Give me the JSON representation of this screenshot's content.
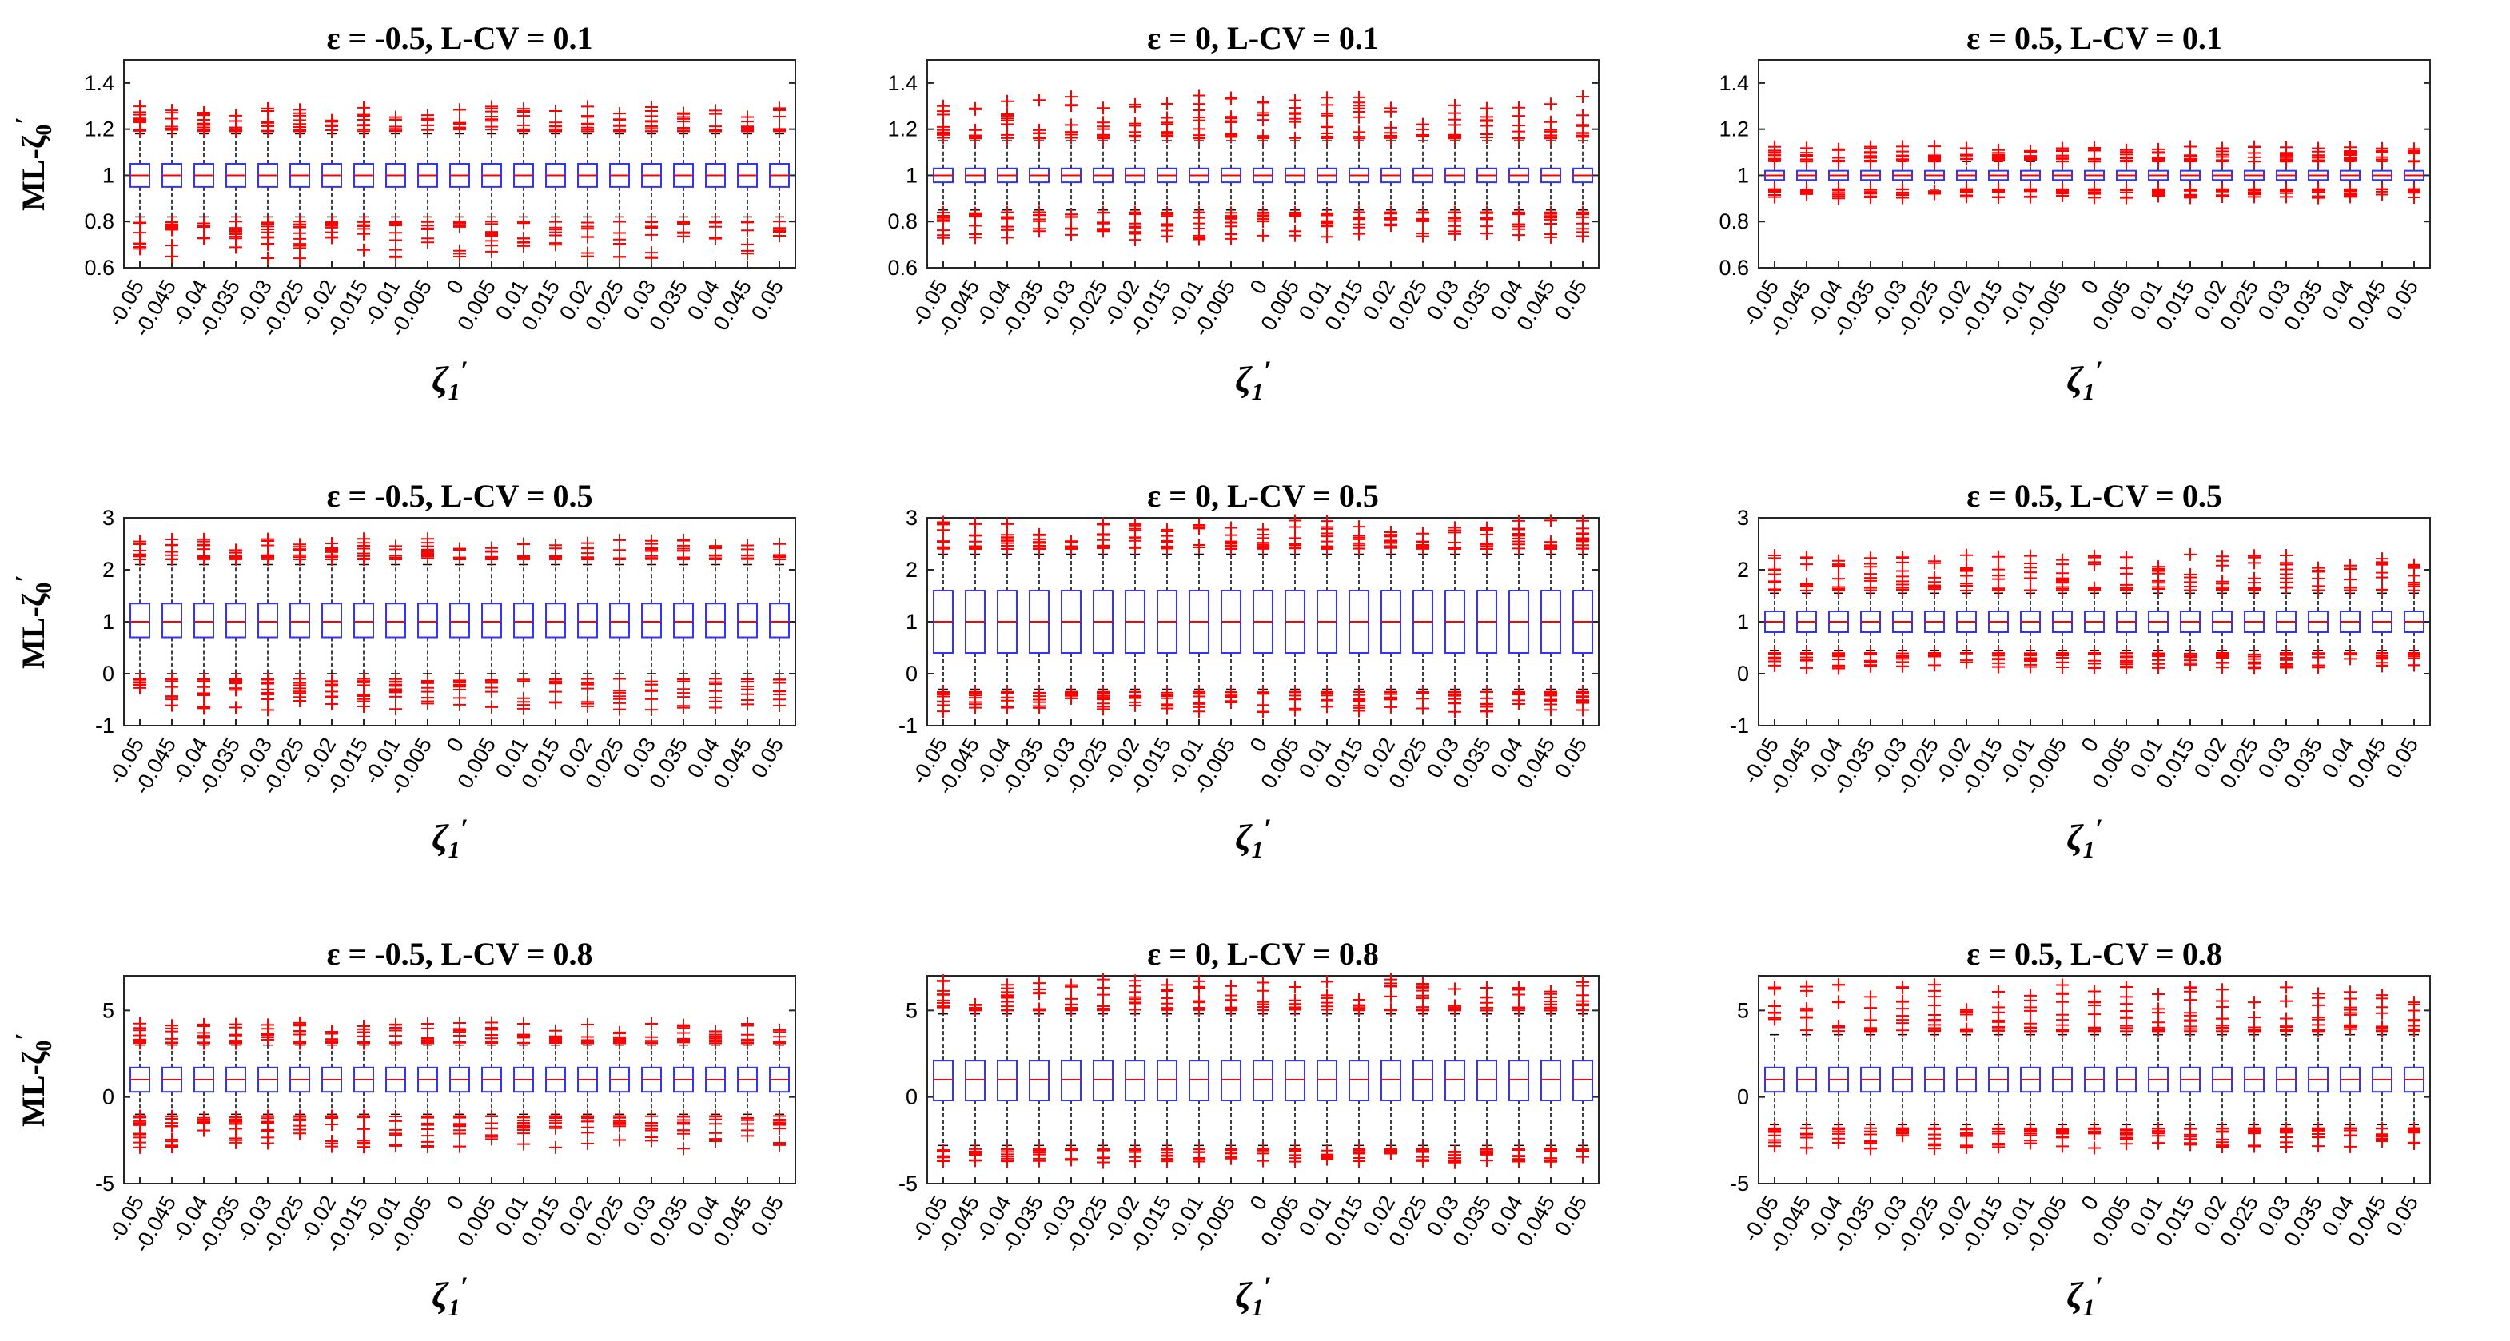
{
  "figure": {
    "xlabel_symbol": "ζ",
    "xlabel_sub": "1",
    "xlabel_prime": "′",
    "ylabel_prefix": "ML-ζ",
    "ylabel_sub": "0",
    "ylabel_prime": "′",
    "colors": {
      "box": "#3333ff",
      "median": "#ff0000",
      "outlier": "#ff0000",
      "whisker": "#000000",
      "axes": "#262626"
    }
  },
  "chart_data": [
    {
      "type": "box",
      "title": "ε = -0.5, L-CV = 0.1",
      "show_ylabel": true,
      "categories": [
        "-0.05",
        "-0.045",
        "-0.04",
        "-0.035",
        "-0.03",
        "-0.025",
        "-0.02",
        "-0.015",
        "-0.01",
        "-0.005",
        "0",
        "0.005",
        "0.01",
        "0.015",
        "0.02",
        "0.025",
        "0.03",
        "0.035",
        "0.04",
        "0.045",
        "0.05"
      ],
      "ylim": [
        0.6,
        1.5
      ],
      "yticks": [
        0.6,
        0.8,
        1,
        1.2,
        1.4
      ],
      "ytick_labels": [
        "0.6",
        "0.8",
        "1",
        "1.2",
        "1.4"
      ],
      "box": {
        "q1": 0.95,
        "median": 1.0,
        "q3": 1.05,
        "whisker_low": 0.82,
        "whisker_high": 1.18
      },
      "outliers_high": {
        "min": 1.19,
        "max": 1.3
      },
      "outliers_low": {
        "min": 0.64,
        "max": 0.8
      }
    },
    {
      "type": "box",
      "title": "ε = 0, L-CV = 0.1",
      "show_ylabel": false,
      "categories": [
        "-0.05",
        "-0.045",
        "-0.04",
        "-0.035",
        "-0.03",
        "-0.025",
        "-0.02",
        "-0.015",
        "-0.01",
        "-0.005",
        "0",
        "0.005",
        "0.01",
        "0.015",
        "0.02",
        "0.025",
        "0.03",
        "0.035",
        "0.04",
        "0.045",
        "0.05"
      ],
      "ylim": [
        0.6,
        1.5
      ],
      "yticks": [
        0.6,
        0.8,
        1,
        1.2,
        1.4
      ],
      "ytick_labels": [
        "0.6",
        "0.8",
        "1",
        "1.2",
        "1.4"
      ],
      "box": {
        "q1": 0.97,
        "median": 1.0,
        "q3": 1.03,
        "whisker_low": 0.85,
        "whisker_high": 1.15
      },
      "outliers_high": {
        "min": 1.16,
        "max": 1.35
      },
      "outliers_low": {
        "min": 0.72,
        "max": 0.84
      }
    },
    {
      "type": "box",
      "title": "ε = 0.5, L-CV = 0.1",
      "show_ylabel": false,
      "categories": [
        "-0.05",
        "-0.045",
        "-0.04",
        "-0.035",
        "-0.03",
        "-0.025",
        "-0.02",
        "-0.015",
        "-0.01",
        "-0.005",
        "0",
        "0.005",
        "0.01",
        "0.015",
        "0.02",
        "0.025",
        "0.03",
        "0.035",
        "0.04",
        "0.045",
        "0.05"
      ],
      "ylim": [
        0.6,
        1.5
      ],
      "yticks": [
        0.6,
        0.8,
        1,
        1.2,
        1.4
      ],
      "ytick_labels": [
        "0.6",
        "0.8",
        "1",
        "1.2",
        "1.4"
      ],
      "box": {
        "q1": 0.98,
        "median": 1.0,
        "q3": 1.02,
        "whisker_low": 0.94,
        "whisker_high": 1.06
      },
      "outliers_high": {
        "min": 1.06,
        "max": 1.13
      },
      "outliers_low": {
        "min": 0.9,
        "max": 0.94
      }
    },
    {
      "type": "box",
      "title": "ε = -0.5, L-CV = 0.5",
      "show_ylabel": true,
      "categories": [
        "-0.05",
        "-0.045",
        "-0.04",
        "-0.035",
        "-0.03",
        "-0.025",
        "-0.02",
        "-0.015",
        "-0.01",
        "-0.005",
        "0",
        "0.005",
        "0.01",
        "0.015",
        "0.02",
        "0.025",
        "0.03",
        "0.035",
        "0.04",
        "0.045",
        "0.05"
      ],
      "ylim": [
        -1,
        3
      ],
      "yticks": [
        -1,
        0,
        1,
        2,
        3
      ],
      "ytick_labels": [
        "-1",
        "0",
        "1",
        "2",
        "3"
      ],
      "box": {
        "q1": 0.7,
        "median": 1.0,
        "q3": 1.35,
        "whisker_low": 0.0,
        "whisker_high": 2.1
      },
      "outliers_high": {
        "min": 2.2,
        "max": 2.6
      },
      "outliers_low": {
        "min": -0.7,
        "max": -0.1
      }
    },
    {
      "type": "box",
      "title": "ε = 0, L-CV = 0.5",
      "show_ylabel": false,
      "categories": [
        "-0.05",
        "-0.045",
        "-0.04",
        "-0.035",
        "-0.03",
        "-0.025",
        "-0.02",
        "-0.015",
        "-0.01",
        "-0.005",
        "0",
        "0.005",
        "0.01",
        "0.015",
        "0.02",
        "0.025",
        "0.03",
        "0.035",
        "0.04",
        "0.045",
        "0.05"
      ],
      "ylim": [
        -1,
        3
      ],
      "yticks": [
        -1,
        0,
        1,
        2,
        3
      ],
      "ytick_labels": [
        "-1",
        "0",
        "1",
        "2",
        "3"
      ],
      "box": {
        "q1": 0.4,
        "median": 1.0,
        "q3": 1.6,
        "whisker_low": -0.3,
        "whisker_high": 2.3
      },
      "outliers_high": {
        "min": 2.4,
        "max": 2.95
      },
      "outliers_low": {
        "min": -0.75,
        "max": -0.35
      }
    },
    {
      "type": "box",
      "title": "ε = 0.5, L-CV = 0.5",
      "show_ylabel": false,
      "categories": [
        "-0.05",
        "-0.045",
        "-0.04",
        "-0.035",
        "-0.03",
        "-0.025",
        "-0.02",
        "-0.015",
        "-0.01",
        "-0.005",
        "0",
        "0.005",
        "0.01",
        "0.015",
        "0.02",
        "0.025",
        "0.03",
        "0.035",
        "0.04",
        "0.045",
        "0.05"
      ],
      "ylim": [
        -1,
        3
      ],
      "yticks": [
        -1,
        0,
        1,
        2,
        3
      ],
      "ytick_labels": [
        "-1",
        "0",
        "1",
        "2",
        "3"
      ],
      "box": {
        "q1": 0.8,
        "median": 1.0,
        "q3": 1.2,
        "whisker_low": 0.45,
        "whisker_high": 1.55
      },
      "outliers_high": {
        "min": 1.6,
        "max": 2.3
      },
      "outliers_low": {
        "min": 0.1,
        "max": 0.4
      }
    },
    {
      "type": "box",
      "title": "ε = -0.5, L-CV = 0.8",
      "show_ylabel": true,
      "categories": [
        "-0.05",
        "-0.045",
        "-0.04",
        "-0.035",
        "-0.03",
        "-0.025",
        "-0.02",
        "-0.015",
        "-0.01",
        "-0.005",
        "0",
        "0.005",
        "0.01",
        "0.015",
        "0.02",
        "0.025",
        "0.03",
        "0.035",
        "0.04",
        "0.045",
        "0.05"
      ],
      "ylim": [
        -5,
        7
      ],
      "yticks": [
        -5,
        0,
        5
      ],
      "ytick_labels": [
        "-5",
        "0",
        "5"
      ],
      "box": {
        "q1": 0.3,
        "median": 1.0,
        "q3": 1.7,
        "whisker_low": -1.0,
        "whisker_high": 3.0
      },
      "outliers_high": {
        "min": 3.1,
        "max": 4.3
      },
      "outliers_low": {
        "min": -3.0,
        "max": -1.1
      }
    },
    {
      "type": "box",
      "title": "ε = 0, L-CV = 0.8",
      "show_ylabel": false,
      "categories": [
        "-0.05",
        "-0.045",
        "-0.04",
        "-0.035",
        "-0.03",
        "-0.025",
        "-0.02",
        "-0.015",
        "-0.01",
        "-0.005",
        "0",
        "0.005",
        "0.01",
        "0.015",
        "0.02",
        "0.025",
        "0.03",
        "0.035",
        "0.04",
        "0.045",
        "0.05"
      ],
      "ylim": [
        -5,
        7
      ],
      "yticks": [
        -5,
        0,
        5
      ],
      "ytick_labels": [
        "-5",
        "0",
        "5"
      ],
      "box": {
        "q1": -0.2,
        "median": 1.0,
        "q3": 2.1,
        "whisker_low": -2.8,
        "whisker_high": 4.8
      },
      "outliers_high": {
        "min": 5.0,
        "max": 6.8
      },
      "outliers_low": {
        "min": -3.8,
        "max": -3.0
      }
    },
    {
      "type": "box",
      "title": "ε = 0.5, L-CV = 0.8",
      "show_ylabel": false,
      "categories": [
        "-0.05",
        "-0.045",
        "-0.04",
        "-0.035",
        "-0.03",
        "-0.025",
        "-0.02",
        "-0.015",
        "-0.01",
        "-0.005",
        "0",
        "0.005",
        "0.01",
        "0.015",
        "0.02",
        "0.025",
        "0.03",
        "0.035",
        "0.04",
        "0.045",
        "0.05"
      ],
      "ylim": [
        -5,
        7
      ],
      "yticks": [
        -5,
        0,
        5
      ],
      "ytick_labels": [
        "-5",
        "0",
        "5"
      ],
      "box": {
        "q1": 0.3,
        "median": 1.0,
        "q3": 1.7,
        "whisker_low": -1.6,
        "whisker_high": 3.6
      },
      "outliers_high": {
        "min": 3.8,
        "max": 6.5
      },
      "outliers_low": {
        "min": -3.0,
        "max": -1.8
      }
    }
  ]
}
